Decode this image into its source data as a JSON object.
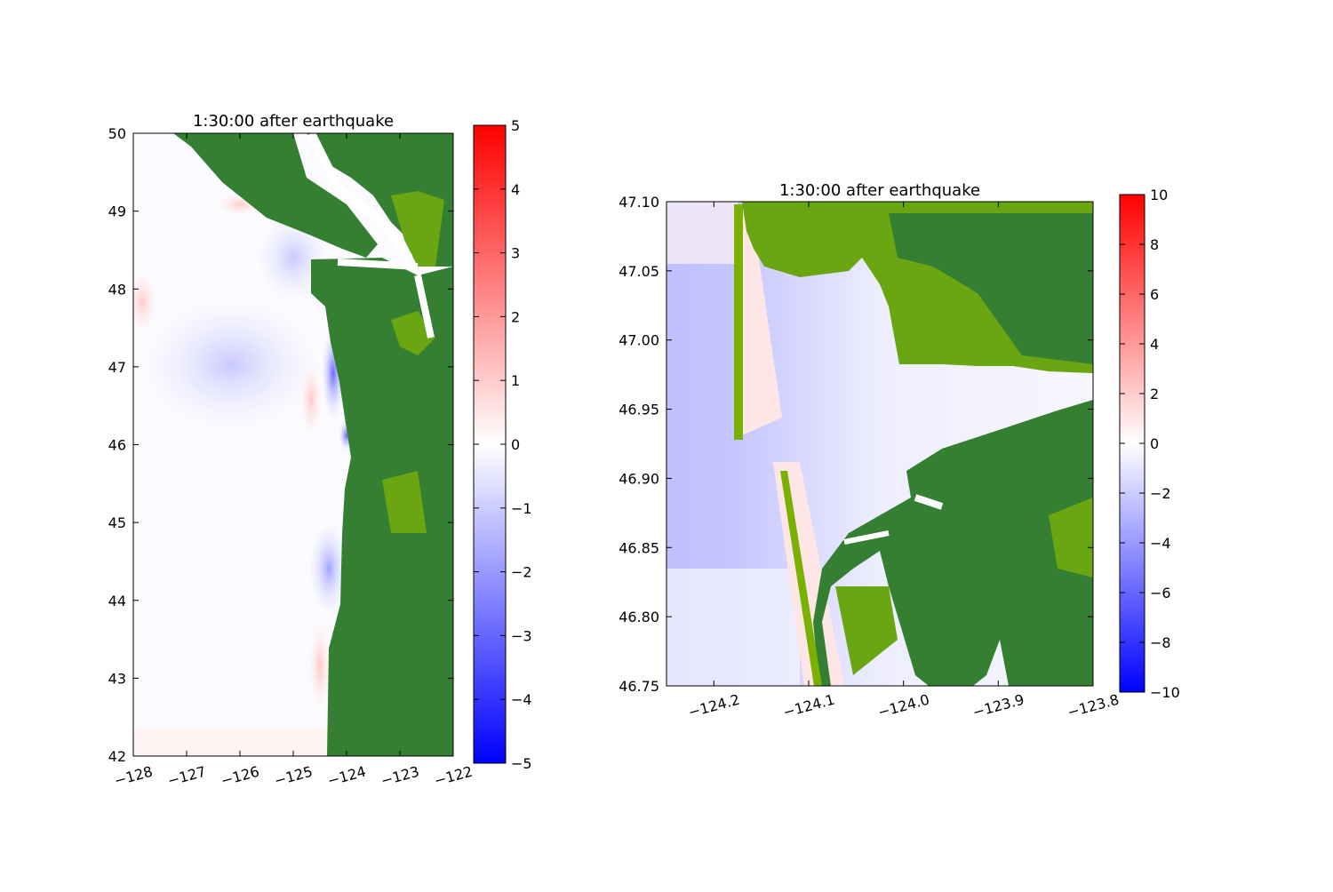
{
  "chart_data": [
    {
      "type": "heatmap",
      "title": "1:30:00 after earthquake",
      "xlim": [
        -128,
        -122
      ],
      "ylim": [
        42,
        50
      ],
      "xticks": [
        "−128",
        "−127",
        "−126",
        "−125",
        "−124",
        "−123",
        "−122"
      ],
      "xtick_values": [
        -128,
        -127,
        -126,
        -125,
        -124,
        -123,
        -122
      ],
      "yticks": [
        "50",
        "49",
        "48",
        "47",
        "46",
        "45",
        "44",
        "43",
        "42"
      ],
      "ytick_values": [
        50,
        49,
        48,
        47,
        46,
        45,
        44,
        43,
        42
      ],
      "colorbar": {
        "range": [
          -5,
          5
        ],
        "colormap": "bwr",
        "ticks": [
          "5",
          "4",
          "3",
          "2",
          "1",
          "0",
          "−1",
          "−2",
          "−3",
          "−4",
          "−5"
        ],
        "tick_values": [
          5,
          4,
          3,
          2,
          1,
          0,
          -1,
          -2,
          -3,
          -4,
          -5
        ]
      },
      "land_color": "#357f32",
      "land_color_light": "#6aa512",
      "grid": false
    },
    {
      "type": "heatmap",
      "title": "1:30:00 after earthquake",
      "xlim": [
        -124.25,
        -123.8
      ],
      "ylim": [
        46.75,
        47.1
      ],
      "xticks": [
        "−124.2",
        "−124.1",
        "−124.0",
        "−123.9",
        "−123.8"
      ],
      "xtick_values": [
        -124.2,
        -124.1,
        -124.0,
        -123.9,
        -123.8
      ],
      "yticks": [
        "47.10",
        "47.05",
        "47.00",
        "46.95",
        "46.90",
        "46.85",
        "46.80",
        "46.75"
      ],
      "ytick_values": [
        47.1,
        47.05,
        47.0,
        46.95,
        46.9,
        46.85,
        46.8,
        46.75
      ],
      "colorbar": {
        "range": [
          -10,
          10
        ],
        "colormap": "bwr",
        "ticks": [
          "10",
          "8",
          "6",
          "4",
          "2",
          "0",
          "−2",
          "−4",
          "−6",
          "−8",
          "−10"
        ],
        "tick_values": [
          10,
          8,
          6,
          4,
          2,
          0,
          -2,
          -4,
          -6,
          -8,
          -10
        ]
      },
      "land_color": "#357f32",
      "land_color_light": "#7ab000",
      "grid": false
    }
  ]
}
